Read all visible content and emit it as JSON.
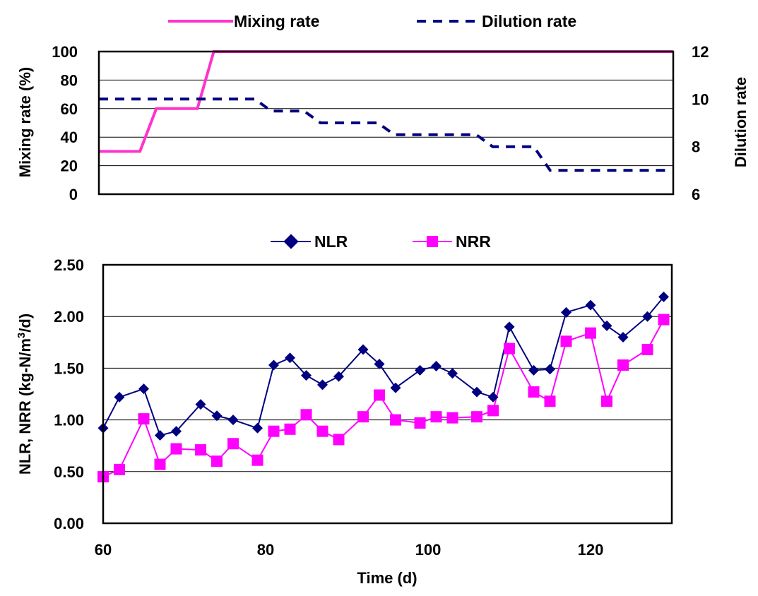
{
  "chart_data": [
    {
      "type": "line",
      "x": [
        60,
        62,
        65,
        67,
        69,
        72,
        74,
        76,
        79,
        81,
        83,
        85,
        87,
        89,
        92,
        94,
        96,
        99,
        101,
        103,
        106,
        108,
        110,
        113,
        115,
        117,
        120,
        122,
        124,
        127,
        129
      ],
      "xlim": [
        60,
        130
      ],
      "left_axis": {
        "label": "Mixing rate (%)",
        "ylim": [
          0,
          100
        ],
        "ticks": [
          "0",
          "20",
          "40",
          "60",
          "80",
          "100"
        ]
      },
      "right_axis": {
        "label": "Dilution rate",
        "ylim": [
          6,
          12
        ],
        "ticks": [
          "6",
          "8",
          "10",
          "12"
        ]
      },
      "series": [
        {
          "name": "Mixing rate",
          "axis": "left",
          "style": "solid",
          "color": "#ff33cc",
          "values": [
            30,
            30,
            30,
            60,
            60,
            60,
            100,
            100,
            100,
            100,
            100,
            100,
            100,
            100,
            100,
            100,
            100,
            100,
            100,
            100,
            100,
            100,
            100,
            100,
            100,
            100,
            100,
            100,
            100,
            100,
            100
          ]
        },
        {
          "name": "Dilution rate",
          "axis": "right",
          "style": "dashed",
          "color": "#000080",
          "values": [
            10,
            10,
            10,
            10,
            10,
            10,
            10,
            10,
            10,
            9.5,
            9.5,
            9.5,
            9,
            9,
            9,
            9,
            8.5,
            8.5,
            8.5,
            8.5,
            8.5,
            8,
            8,
            8,
            7,
            7,
            7,
            7,
            7,
            7,
            7
          ]
        }
      ],
      "grid": "horizontal",
      "legend": "top"
    },
    {
      "type": "line",
      "x": [
        60,
        62,
        65,
        67,
        69,
        72,
        74,
        76,
        79,
        81,
        83,
        85,
        87,
        89,
        92,
        94,
        96,
        99,
        101,
        103,
        106,
        108,
        110,
        113,
        115,
        117,
        120,
        122,
        124,
        127,
        129
      ],
      "xlabel": "Time (d)",
      "xlim": [
        60,
        130
      ],
      "xticks": [
        "60",
        "80",
        "100",
        "120"
      ],
      "ylabel": "NLR, NRR (kg-N/m3/d)",
      "ylim": [
        0,
        2.5
      ],
      "yticks": [
        "0.00",
        "0.50",
        "1.00",
        "1.50",
        "2.00",
        "2.50"
      ],
      "series": [
        {
          "name": "NLR",
          "marker": "diamond",
          "color": "#000080",
          "values": [
            0.92,
            1.22,
            1.3,
            0.85,
            0.89,
            1.15,
            1.04,
            1.0,
            0.92,
            1.53,
            1.6,
            1.43,
            1.34,
            1.42,
            1.68,
            1.54,
            1.31,
            1.48,
            1.52,
            1.45,
            1.27,
            1.22,
            1.9,
            1.48,
            1.49,
            2.04,
            2.11,
            1.91,
            1.8,
            2.0,
            2.19
          ]
        },
        {
          "name": "NRR",
          "marker": "square",
          "color": "#ff00ff",
          "values": [
            0.45,
            0.52,
            1.01,
            0.57,
            0.72,
            0.71,
            0.6,
            0.77,
            0.61,
            0.89,
            0.91,
            1.05,
            0.89,
            0.81,
            1.03,
            1.24,
            1.0,
            0.97,
            1.03,
            1.02,
            1.03,
            1.09,
            1.69,
            1.27,
            1.18,
            1.76,
            1.84,
            1.18,
            1.53,
            1.68,
            1.97
          ]
        }
      ],
      "grid": "horizontal",
      "legend": "top"
    }
  ]
}
